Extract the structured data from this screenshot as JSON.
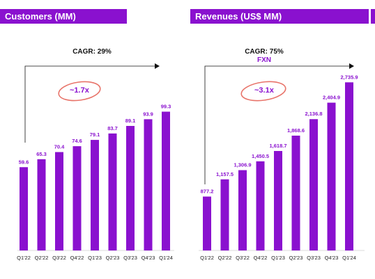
{
  "chart_data": [
    {
      "type": "bar",
      "title": "Customers (MM)",
      "annotation": "CAGR: 29%",
      "growth_label": "~1.7x",
      "categories": [
        "Q1'22",
        "Q2'22",
        "Q3'22",
        "Q4'22",
        "Q1'23",
        "Q2'23",
        "Q3'23",
        "Q4'23",
        "Q1'24"
      ],
      "values": [
        59.6,
        65.3,
        70.4,
        74.6,
        79.1,
        83.7,
        89.1,
        93.9,
        99.3
      ],
      "value_labels": [
        "59.6",
        "65.3",
        "70.4",
        "74.6",
        "79.1",
        "83.7",
        "89.1",
        "93.9",
        "99.3"
      ],
      "ylim": [
        0,
        110
      ],
      "grid": false,
      "bar_color": "#8a11cf"
    },
    {
      "type": "bar",
      "title": "Revenues (US$ MM)",
      "annotation": "CAGR: 75%",
      "annotation_sub": "FXN",
      "growth_label": "~3.1x",
      "categories": [
        "Q1'22",
        "Q2'22",
        "Q3'22",
        "Q4'22",
        "Q1'23",
        "Q2'23",
        "Q3'23",
        "Q4'23",
        "Q1'24"
      ],
      "values": [
        877.2,
        1157.5,
        1306.9,
        1450.5,
        1618.7,
        1868.6,
        2136.8,
        2404.9,
        2735.9
      ],
      "value_labels": [
        "877.2",
        "1,157.5",
        "1,306.9",
        "1,450.5",
        "1,618.7",
        "1,868.6",
        "2,136.8",
        "2,404.9",
        "2,735.9"
      ],
      "ylim": [
        0,
        3000
      ],
      "grid": false,
      "bar_color": "#8a11cf"
    }
  ],
  "colors": {
    "accent": "#8a11cf",
    "circle": "#e8746a"
  }
}
